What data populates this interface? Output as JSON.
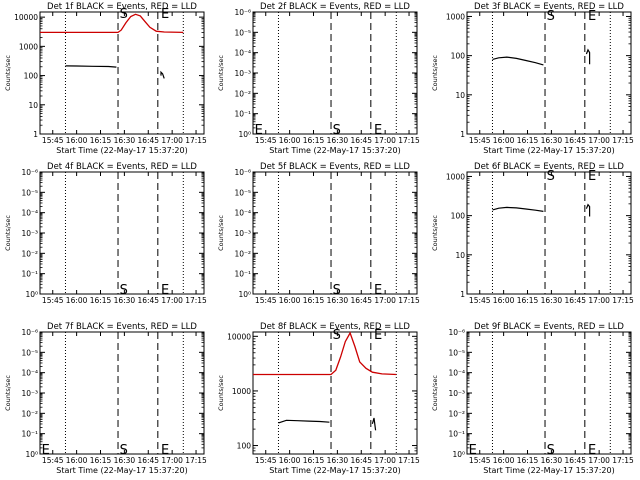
{
  "colors": {
    "events": "#000000",
    "lld": "#cc0000",
    "background": "#ffffff"
  },
  "chart_data": [
    {
      "type": "line",
      "title": "Det 1f BLACK = Events, RED = LLD",
      "ylabel": "Counts/sec",
      "xlabel": "Start Time (22-May-17 15:37:20)",
      "yscale": "log",
      "ylim": [
        1,
        15000
      ],
      "yticks": [
        "10000",
        "1000",
        "100",
        "10",
        "1"
      ],
      "ytick_values": [
        10000,
        1000,
        100,
        10,
        1
      ],
      "xticks": [
        "15:45",
        "16:00",
        "16:15",
        "16:30",
        "16:45",
        "17:00",
        "17:15"
      ],
      "xtick_values": [
        "15:45",
        "16:00",
        "16:15",
        "16:30",
        "16:45",
        "17:00",
        "17:15"
      ],
      "xlim": [
        "15:37",
        "17:20"
      ],
      "vlines": [
        {
          "time": "15:53",
          "style": "dotted"
        },
        {
          "time": "16:26",
          "style": "dashed"
        },
        {
          "time": "16:51",
          "style": "dashed"
        },
        {
          "time": "17:07",
          "style": "dotted"
        }
      ],
      "markers": [
        {
          "text": "S",
          "time": "16:27",
          "value": 14000
        },
        {
          "text": "E",
          "time": "16:53",
          "value": 14000
        },
        {
          "text": "E",
          "time": "15:38",
          "value": 14000,
          "hidden": true
        }
      ],
      "series": [
        {
          "color": "#000000",
          "x": [
            "15:53",
            "16:00",
            "16:10",
            "16:20",
            "16:25"
          ],
          "values": [
            215,
            212,
            208,
            205,
            195
          ]
        },
        {
          "color": "#000000",
          "x": [
            "16:53",
            "16:53",
            "16:54",
            "16:55"
          ],
          "values": [
            100,
            130,
            115,
            80
          ]
        },
        {
          "color": "#cc0000",
          "x": [
            "15:37",
            "16:26",
            "16:28",
            "16:31",
            "16:34",
            "16:37",
            "16:40",
            "16:43",
            "16:46",
            "16:50",
            "16:55",
            "17:07"
          ],
          "values": [
            3000,
            3000,
            3600,
            6500,
            10500,
            12500,
            11000,
            7000,
            4500,
            3300,
            3100,
            3000
          ]
        }
      ]
    },
    {
      "type": "line",
      "title": "Det 2f BLACK = Events, RED = LLD",
      "ylabel": "Counts/sec",
      "xlabel": "Start Time (22-May-17 15:37:20)",
      "yscale": "log",
      "ylim": [
        1,
        1000000
      ],
      "yticks": [
        "10⁻⁶",
        "10⁻⁵",
        "10⁻⁴",
        "10⁻³",
        "10⁻²",
        "10⁻¹",
        "10⁰"
      ],
      "ytick_values": [
        1000000,
        100000,
        10000,
        1000,
        100,
        10,
        1
      ],
      "xticks": [
        "15:45",
        "16:00",
        "16:15",
        "16:30",
        "16:45",
        "17:00",
        "17:15"
      ],
      "xtick_values": [
        "15:45",
        "16:00",
        "16:15",
        "16:30",
        "16:45",
        "17:00",
        "17:15"
      ],
      "xlim": [
        "15:37",
        "17:20"
      ],
      "vlines": [
        {
          "time": "15:53",
          "style": "dotted"
        },
        {
          "time": "16:26",
          "style": "dashed"
        },
        {
          "time": "16:51",
          "style": "dashed"
        },
        {
          "time": "17:07",
          "style": "dotted"
        }
      ],
      "markers": [
        {
          "text": "E",
          "time": "15:38",
          "value": 1.8
        },
        {
          "text": "S",
          "time": "16:27",
          "value": 1.8
        },
        {
          "text": "E",
          "time": "16:53",
          "value": 1.8
        }
      ],
      "series": []
    },
    {
      "type": "line",
      "title": "Det 3f BLACK = Events, RED = LLD",
      "ylabel": "Counts/sec",
      "xlabel": "Start Time (22-May-17 15:37:20)",
      "yscale": "log",
      "ylim": [
        1,
        1300
      ],
      "yticks": [
        "1000",
        "100",
        "10",
        "1"
      ],
      "ytick_values": [
        1000,
        100,
        10,
        1
      ],
      "xticks": [
        "15:45",
        "16:00",
        "16:15",
        "16:30",
        "16:45",
        "17:00",
        "17:15"
      ],
      "xtick_values": [
        "15:45",
        "16:00",
        "16:15",
        "16:30",
        "16:45",
        "17:00",
        "17:15"
      ],
      "xlim": [
        "15:37",
        "17:20"
      ],
      "vlines": [
        {
          "time": "15:53",
          "style": "dotted"
        },
        {
          "time": "16:26",
          "style": "dashed"
        },
        {
          "time": "16:51",
          "style": "dashed"
        },
        {
          "time": "17:07",
          "style": "dotted"
        }
      ],
      "markers": [
        {
          "text": "S",
          "time": "16:27",
          "value": 1100
        },
        {
          "text": "E",
          "time": "16:53",
          "value": 1100
        }
      ],
      "series": [
        {
          "color": "#000000",
          "x": [
            "15:53",
            "15:57",
            "16:02",
            "16:08",
            "16:14",
            "16:20",
            "16:25"
          ],
          "values": [
            80,
            88,
            92,
            85,
            75,
            66,
            58
          ]
        },
        {
          "color": "#000000",
          "x": [
            "16:52",
            "16:53",
            "16:54",
            "16:54"
          ],
          "values": [
            110,
            140,
            120,
            60
          ]
        }
      ]
    },
    {
      "type": "line",
      "title": "Det 4f BLACK = Events, RED = LLD",
      "ylabel": "Counts/sec",
      "xlabel": "",
      "yscale": "log",
      "ylim": [
        1,
        1000000
      ],
      "yticks": [
        "10⁻⁶",
        "10⁻⁵",
        "10⁻⁴",
        "10⁻³",
        "10⁻²",
        "10⁻¹",
        "10⁰"
      ],
      "ytick_values": [
        1000000,
        100000,
        10000,
        1000,
        100,
        10,
        1
      ],
      "xticks": [
        "15:45",
        "16:00",
        "16:15",
        "16:30",
        "16:45",
        "17:00",
        "17:15"
      ],
      "xtick_values": [
        "15:45",
        "16:00",
        "16:15",
        "16:30",
        "16:45",
        "17:00",
        "17:15"
      ],
      "xlim": [
        "15:37",
        "17:20"
      ],
      "vlines": [
        {
          "time": "15:53",
          "style": "dotted"
        },
        {
          "time": "16:26",
          "style": "dashed"
        },
        {
          "time": "16:51",
          "style": "dashed"
        },
        {
          "time": "17:07",
          "style": "dotted"
        }
      ],
      "markers": [
        {
          "text": "S",
          "time": "16:27",
          "value": 1.8
        },
        {
          "text": "E",
          "time": "16:53",
          "value": 1.8
        }
      ],
      "series": []
    },
    {
      "type": "line",
      "title": "Det 5f BLACK = Events, RED = LLD",
      "ylabel": "Counts/sec",
      "xlabel": "",
      "yscale": "log",
      "ylim": [
        1,
        1000000
      ],
      "yticks": [
        "10⁻⁶",
        "10⁻⁵",
        "10⁻⁴",
        "10⁻³",
        "10⁻²",
        "10⁻¹",
        "10⁰"
      ],
      "ytick_values": [
        1000000,
        100000,
        10000,
        1000,
        100,
        10,
        1
      ],
      "xticks": [
        "15:45",
        "16:00",
        "16:15",
        "16:30",
        "16:45",
        "17:00",
        "17:15"
      ],
      "xtick_values": [
        "15:45",
        "16:00",
        "16:15",
        "16:30",
        "16:45",
        "17:00",
        "17:15"
      ],
      "xlim": [
        "15:37",
        "17:20"
      ],
      "vlines": [
        {
          "time": "15:53",
          "style": "dotted"
        },
        {
          "time": "16:26",
          "style": "dashed"
        },
        {
          "time": "16:51",
          "style": "dashed"
        },
        {
          "time": "17:07",
          "style": "dotted"
        }
      ],
      "markers": [
        {
          "text": "S",
          "time": "16:27",
          "value": 1.8
        },
        {
          "text": "E",
          "time": "16:53",
          "value": 1.8
        }
      ],
      "series": []
    },
    {
      "type": "line",
      "title": "Det 6f BLACK = Events, RED = LLD",
      "ylabel": "Counts/sec",
      "xlabel": "",
      "yscale": "log",
      "ylim": [
        1,
        1300
      ],
      "yticks": [
        "1000",
        "100",
        "10",
        "1"
      ],
      "ytick_values": [
        1000,
        100,
        10,
        1
      ],
      "xticks": [
        "15:45",
        "16:00",
        "16:15",
        "16:30",
        "16:45",
        "17:00",
        "17:15"
      ],
      "xtick_values": [
        "15:45",
        "16:00",
        "16:15",
        "16:30",
        "16:45",
        "17:00",
        "17:15"
      ],
      "xlim": [
        "15:37",
        "17:20"
      ],
      "vlines": [
        {
          "time": "15:53",
          "style": "dotted"
        },
        {
          "time": "16:26",
          "style": "dashed"
        },
        {
          "time": "16:51",
          "style": "dashed"
        },
        {
          "time": "17:07",
          "style": "dotted"
        }
      ],
      "markers": [
        {
          "text": "S",
          "time": "16:27",
          "value": 1100
        },
        {
          "text": "E",
          "time": "16:53",
          "value": 1100
        }
      ],
      "series": [
        {
          "color": "#000000",
          "x": [
            "15:53",
            "15:57",
            "16:02",
            "16:08",
            "16:14",
            "16:20",
            "16:25"
          ],
          "values": [
            140,
            155,
            162,
            158,
            148,
            138,
            128
          ]
        },
        {
          "color": "#000000",
          "x": [
            "16:52",
            "16:53",
            "16:54",
            "16:54"
          ],
          "values": [
            150,
            190,
            170,
            95
          ]
        }
      ]
    },
    {
      "type": "line",
      "title": "Det 7f BLACK = Events, RED = LLD",
      "ylabel": "Counts/sec",
      "xlabel": "Start Time (22-May-17 15:37:20)",
      "yscale": "log",
      "ylim": [
        1,
        1000000
      ],
      "yticks": [
        "10⁻⁶",
        "10⁻⁵",
        "10⁻⁴",
        "10⁻³",
        "10⁻²",
        "10⁻¹",
        "10⁰"
      ],
      "ytick_values": [
        1000000,
        100000,
        10000,
        1000,
        100,
        10,
        1
      ],
      "xticks": [
        "15:45",
        "16:00",
        "16:15",
        "16:30",
        "16:45",
        "17:00",
        "17:15"
      ],
      "xtick_values": [
        "15:45",
        "16:00",
        "16:15",
        "16:30",
        "16:45",
        "17:00",
        "17:15"
      ],
      "xlim": [
        "15:37",
        "17:20"
      ],
      "vlines": [
        {
          "time": "15:53",
          "style": "dotted"
        },
        {
          "time": "16:26",
          "style": "dashed"
        },
        {
          "time": "16:51",
          "style": "dashed"
        },
        {
          "time": "17:07",
          "style": "dotted"
        }
      ],
      "markers": [
        {
          "text": "E",
          "time": "15:38",
          "value": 1.8
        },
        {
          "text": "S",
          "time": "16:27",
          "value": 1.8
        },
        {
          "text": "E",
          "time": "16:53",
          "value": 1.8
        }
      ],
      "series": []
    },
    {
      "type": "line",
      "title": "Det 8f BLACK = Events, RED = LLD",
      "ylabel": "Counts/sec",
      "xlabel": "Start Time (22-May-17 15:37:20)",
      "yscale": "log",
      "ylim": [
        70,
        12000
      ],
      "yticks": [
        "10000",
        "1000",
        "100"
      ],
      "ytick_values": [
        10000,
        1000,
        100
      ],
      "xticks": [
        "15:45",
        "16:00",
        "16:15",
        "16:30",
        "16:45",
        "17:00",
        "17:15"
      ],
      "xtick_values": [
        "15:45",
        "16:00",
        "16:15",
        "16:30",
        "16:45",
        "17:00",
        "17:15"
      ],
      "xlim": [
        "15:37",
        "17:20"
      ],
      "vlines": [
        {
          "time": "15:53",
          "style": "dotted"
        },
        {
          "time": "16:26",
          "style": "dashed"
        },
        {
          "time": "16:51",
          "style": "dashed"
        },
        {
          "time": "17:07",
          "style": "dotted"
        }
      ],
      "markers": [
        {
          "text": "S",
          "time": "16:27",
          "value": 11000
        },
        {
          "text": "E",
          "time": "16:53",
          "value": 11000
        }
      ],
      "series": [
        {
          "color": "#000000",
          "x": [
            "15:53",
            "15:58",
            "16:05",
            "16:12",
            "16:19",
            "16:25"
          ],
          "values": [
            260,
            290,
            285,
            280,
            275,
            268
          ]
        },
        {
          "color": "#000000",
          "x": [
            "16:52",
            "16:53",
            "16:54"
          ],
          "values": [
            250,
            320,
            190
          ]
        },
        {
          "color": "#cc0000",
          "x": [
            "15:37",
            "16:26",
            "16:29",
            "16:32",
            "16:35",
            "16:38",
            "16:41",
            "16:44",
            "16:48",
            "16:52",
            "16:58",
            "17:07"
          ],
          "values": [
            2000,
            2000,
            2400,
            4200,
            8000,
            11500,
            6500,
            3400,
            2600,
            2200,
            2050,
            2000
          ]
        }
      ]
    },
    {
      "type": "line",
      "title": "Det 9f BLACK = Events, RED = LLD",
      "ylabel": "Counts/sec",
      "xlabel": "Start Time (22-May-17 15:37:20)",
      "yscale": "log",
      "ylim": [
        1,
        1000000
      ],
      "yticks": [
        "10⁻⁶",
        "10⁻⁵",
        "10⁻⁴",
        "10⁻³",
        "10⁻²",
        "10⁻¹",
        "10⁰"
      ],
      "ytick_values": [
        1000000,
        100000,
        10000,
        1000,
        100,
        10,
        1
      ],
      "xticks": [
        "15:45",
        "16:00",
        "16:15",
        "16:30",
        "16:45",
        "17:00",
        "17:15"
      ],
      "xtick_values": [
        "15:45",
        "16:00",
        "16:15",
        "16:30",
        "16:45",
        "17:00",
        "17:15"
      ],
      "xlim": [
        "15:37",
        "17:20"
      ],
      "vlines": [
        {
          "time": "15:53",
          "style": "dotted"
        },
        {
          "time": "16:26",
          "style": "dashed"
        },
        {
          "time": "16:51",
          "style": "dashed"
        },
        {
          "time": "17:07",
          "style": "dotted"
        }
      ],
      "markers": [
        {
          "text": "E",
          "time": "15:38",
          "value": 1.8
        },
        {
          "text": "S",
          "time": "16:27",
          "value": 1.8
        },
        {
          "text": "E",
          "time": "16:53",
          "value": 1.8
        }
      ],
      "series": []
    }
  ]
}
